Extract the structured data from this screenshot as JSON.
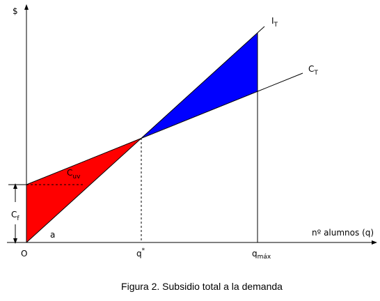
{
  "diagram": {
    "y_axis_label": "$",
    "x_axis_label": "nº alumnos (q)",
    "origin_label": "O",
    "income_line": {
      "base": "I",
      "sub": "T"
    },
    "cost_line": {
      "base": "C",
      "sub": "T"
    },
    "unit_cost": {
      "base": "C",
      "sub": "uv"
    },
    "fixed_cost": {
      "base": "C",
      "sub": "f"
    },
    "angle_label": "a",
    "q_star": {
      "base": "q",
      "sup": "*"
    },
    "q_max": {
      "base": "q",
      "sub": "máx"
    },
    "caption": "Figura 2. Subsidio total a la demanda"
  }
}
